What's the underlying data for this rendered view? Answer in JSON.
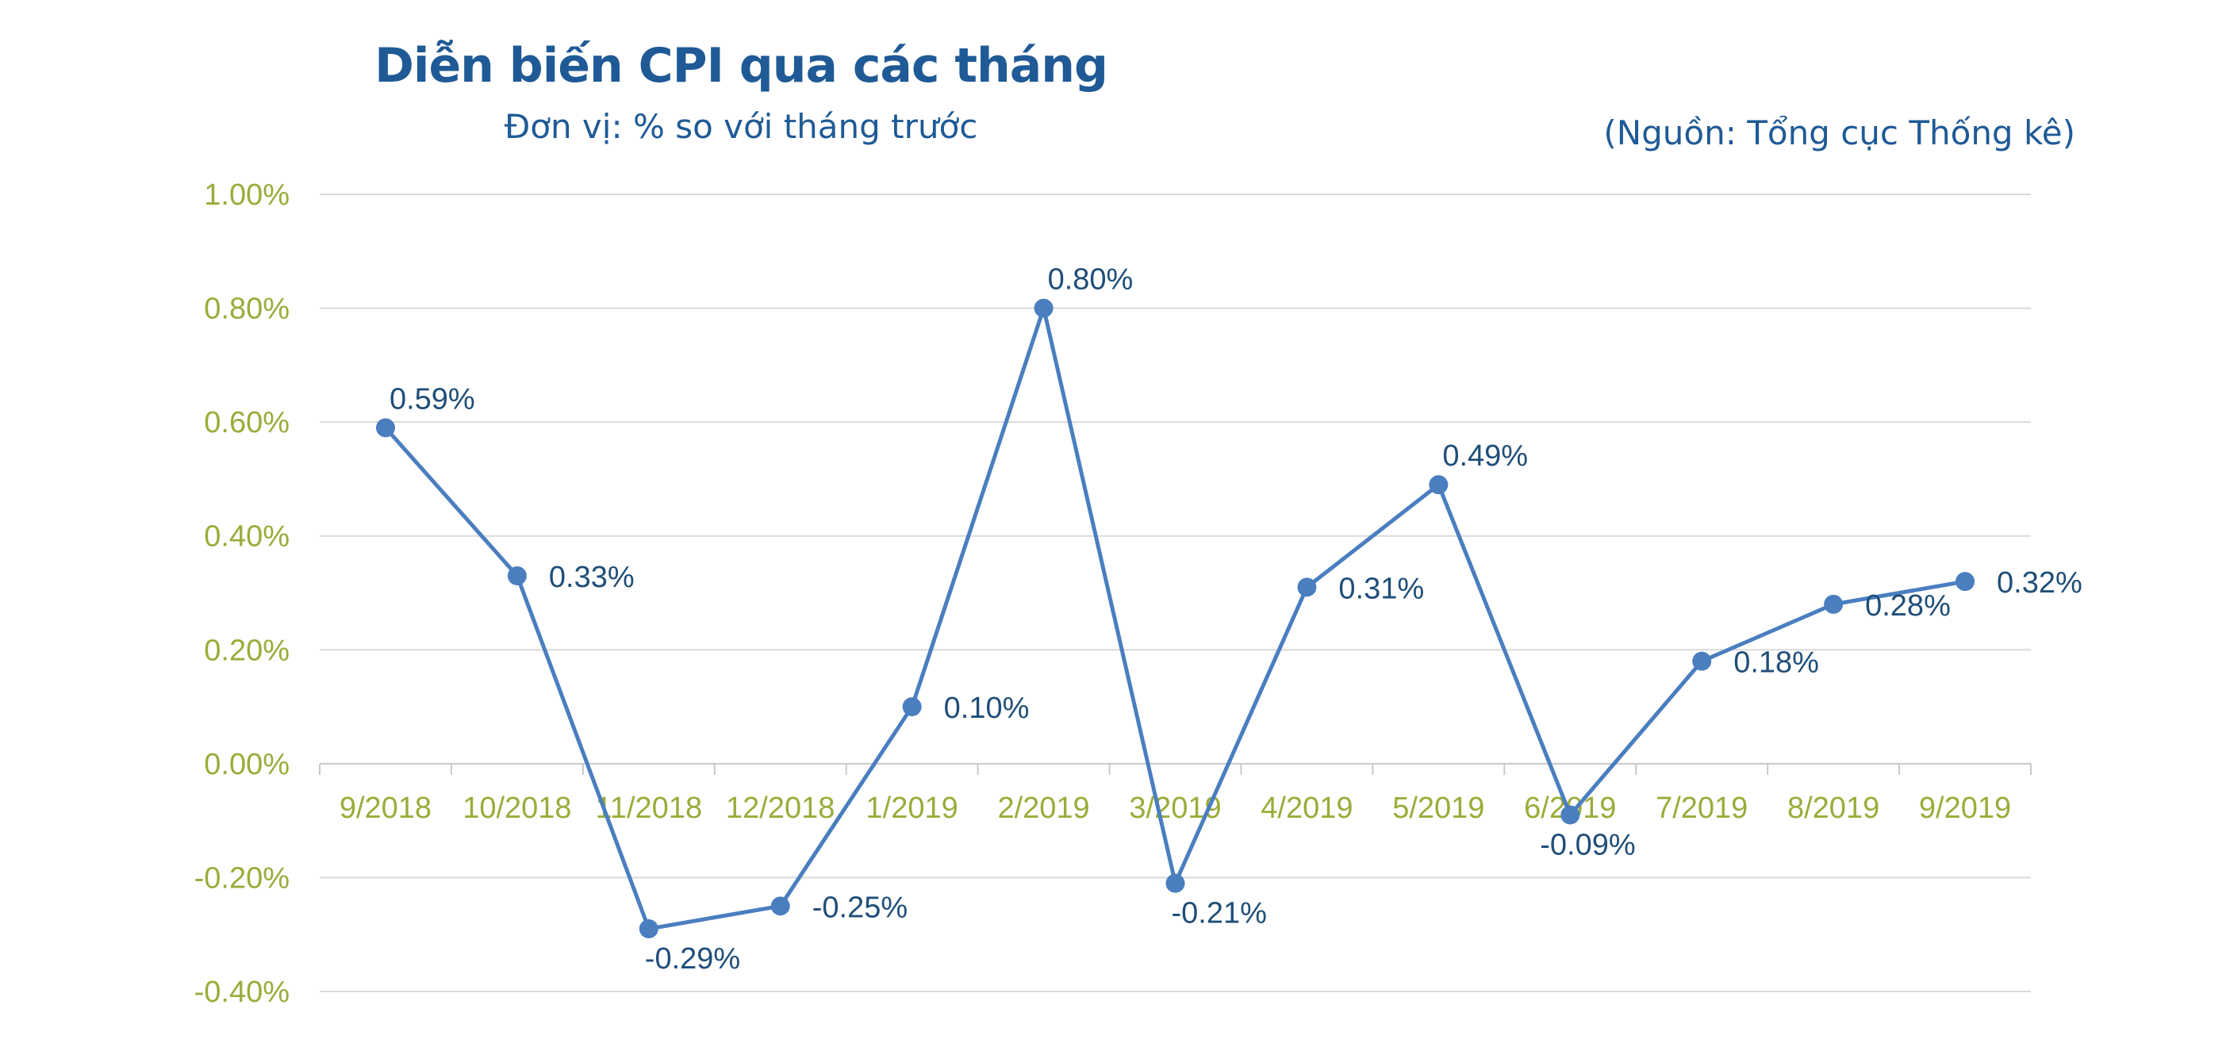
{
  "header": {
    "title": "Diễn biến CPI qua các tháng",
    "subtitle": "Đơn vị: % so với tháng trước",
    "source": "(Nguồn: Tổng cục Thống kê)"
  },
  "chart_data": {
    "type": "line",
    "title": "Diễn biến CPI qua các tháng",
    "subtitle": "Đơn vị: % so với tháng trước",
    "xlabel": "",
    "ylabel": "",
    "categories": [
      "9/2018",
      "10/2018",
      "11/2018",
      "12/2018",
      "1/2019",
      "2/2019",
      "3/2019",
      "4/2019",
      "5/2019",
      "6/2019",
      "7/2019",
      "8/2019",
      "9/2019"
    ],
    "series": [
      {
        "values": [
          0.59,
          0.33,
          -0.29,
          -0.25,
          0.1,
          0.8,
          -0.21,
          0.31,
          0.49,
          -0.09,
          0.18,
          0.28,
          0.32
        ],
        "labels": [
          "0.59%",
          "0.33%",
          "-0.29%",
          "-0.25%",
          "0.10%",
          "0.80%",
          "-0.21%",
          "0.31%",
          "0.49%",
          "-0.09%",
          "0.18%",
          "0.28%",
          "0.32%"
        ],
        "color": "#4a7ebf"
      }
    ],
    "ylim": [
      -0.4,
      1.0
    ],
    "yticks": [
      1.0,
      0.8,
      0.6,
      0.4,
      0.2,
      0.0,
      -0.2,
      -0.4
    ],
    "ytick_labels": [
      "1.00%",
      "0.80%",
      "0.60%",
      "0.40%",
      "0.20%",
      "0.00%",
      "-0.20%",
      "-0.40%"
    ],
    "grid": true,
    "legend": "none",
    "colors": {
      "line": "#4a7ebf",
      "tick_text": "#9aac3a",
      "label_text": "#1f4e79",
      "title": "#1f5a96",
      "grid": "#d9d9d9"
    }
  }
}
